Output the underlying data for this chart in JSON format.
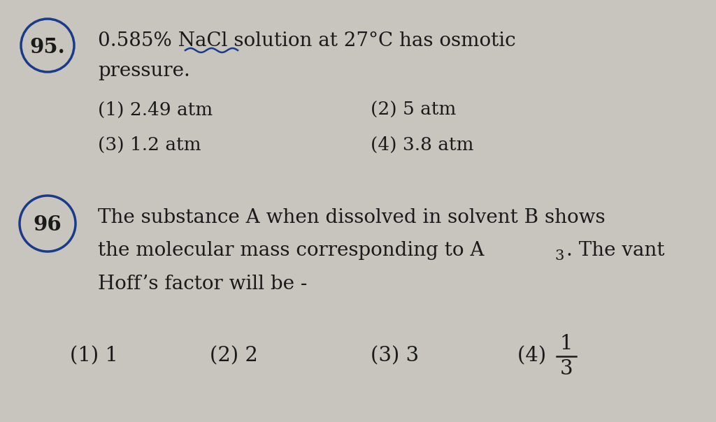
{
  "bg_color": "#c8c4be",
  "text_color": "#1a1a1a",
  "q95_number": "95.",
  "q95_line1": "0.585% NaCl solution at 27°C has osmotic",
  "q95_line2": "pressure.",
  "q95_opt1": "(1) 2.49 atm",
  "q95_opt2": "(2) 5 atm",
  "q95_opt3": "(3) 1.2 atm",
  "q95_opt4": "(4) 3.8 atm",
  "q96_number": "96",
  "q96_line1": "The substance A when dissolved in solvent B shows",
  "q96_line2": "the molecular mass corresponding to A",
  "q96_line2_sub": "3",
  "q96_line2_end": ". The vant",
  "q96_line3": "Hoff’s factor will be -",
  "q96_opt1": "(1) 1",
  "q96_opt2": "(2) 2",
  "q96_opt3": "(3) 3",
  "q96_opt4_pre": "(4) ",
  "q96_opt4_num": "1",
  "q96_opt4_den": "3",
  "circle_color": "#1a3a8a",
  "font_size_main": 20,
  "font_size_opts": 19,
  "font_size_num": 21
}
